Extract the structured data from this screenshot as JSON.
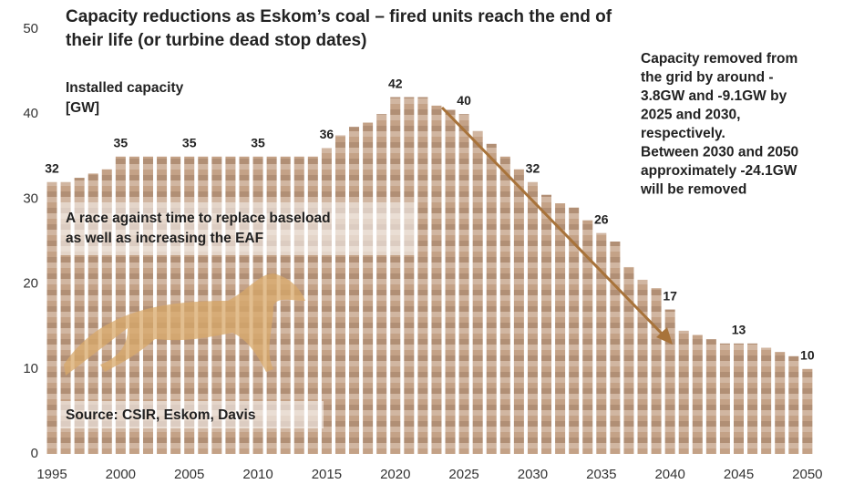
{
  "chart_data": {
    "type": "bar",
    "title_lines": [
      "Capacity reductions as Eskom’s coal – fired units reach the end of",
      "their life (or turbine dead stop dates)"
    ],
    "y_label_lines": [
      "Installed capacity",
      "[GW]"
    ],
    "x": [
      1995,
      1996,
      1997,
      1998,
      1999,
      2000,
      2001,
      2002,
      2003,
      2004,
      2005,
      2006,
      2007,
      2008,
      2009,
      2010,
      2011,
      2012,
      2013,
      2014,
      2015,
      2016,
      2017,
      2018,
      2019,
      2020,
      2021,
      2022,
      2023,
      2024,
      2025,
      2026,
      2027,
      2028,
      2029,
      2030,
      2031,
      2032,
      2033,
      2034,
      2035,
      2036,
      2037,
      2038,
      2039,
      2040,
      2041,
      2042,
      2043,
      2044,
      2045,
      2046,
      2047,
      2048,
      2049,
      2050
    ],
    "values": [
      32,
      32,
      32.5,
      33,
      33.5,
      35,
      35,
      35,
      35,
      35,
      35,
      35,
      35,
      35,
      35,
      35,
      35,
      35,
      35,
      35,
      36,
      37.5,
      38.5,
      39,
      40,
      42,
      42,
      42,
      41,
      40.5,
      40,
      38,
      36.5,
      35,
      33.5,
      32,
      30.5,
      29.5,
      29,
      27.5,
      26,
      25,
      22,
      20.5,
      19.5,
      17,
      14.5,
      14,
      13.5,
      13,
      13,
      13,
      12.5,
      12,
      11.5,
      10
    ],
    "value_labels": [
      "32",
      null,
      null,
      null,
      null,
      "35",
      null,
      null,
      null,
      null,
      "35",
      null,
      null,
      null,
      null,
      "35",
      null,
      null,
      null,
      null,
      "36",
      null,
      null,
      null,
      null,
      "42",
      null,
      null,
      null,
      null,
      "40",
      null,
      null,
      null,
      null,
      "32",
      null,
      null,
      null,
      null,
      "26",
      null,
      null,
      null,
      null,
      "17",
      null,
      null,
      null,
      null,
      "13",
      null,
      null,
      null,
      null,
      "10"
    ],
    "color": "#c4a287",
    "xlim": [
      1994,
      2051
    ],
    "xticks": [
      1995,
      2000,
      2005,
      2010,
      2015,
      2020,
      2025,
      2030,
      2035,
      2040,
      2045,
      2050
    ],
    "ylim": [
      0,
      50
    ],
    "yticks": [
      0,
      10,
      20,
      30,
      40,
      50
    ],
    "grid": false,
    "notes": {
      "race": [
        "A  race against time to replace baseload",
        "as well as increasing the EAF"
      ],
      "source": [
        "Source: CSIR, Eskom, Davis"
      ],
      "removed": [
        "Capacity removed from",
        "the grid by around -",
        "3.8GW and -9.1GW by",
        "2025 and 2030,",
        "respectively.",
        "Between 2030 and 2050",
        "approximately -24.1GW",
        "will be removed"
      ]
    }
  }
}
